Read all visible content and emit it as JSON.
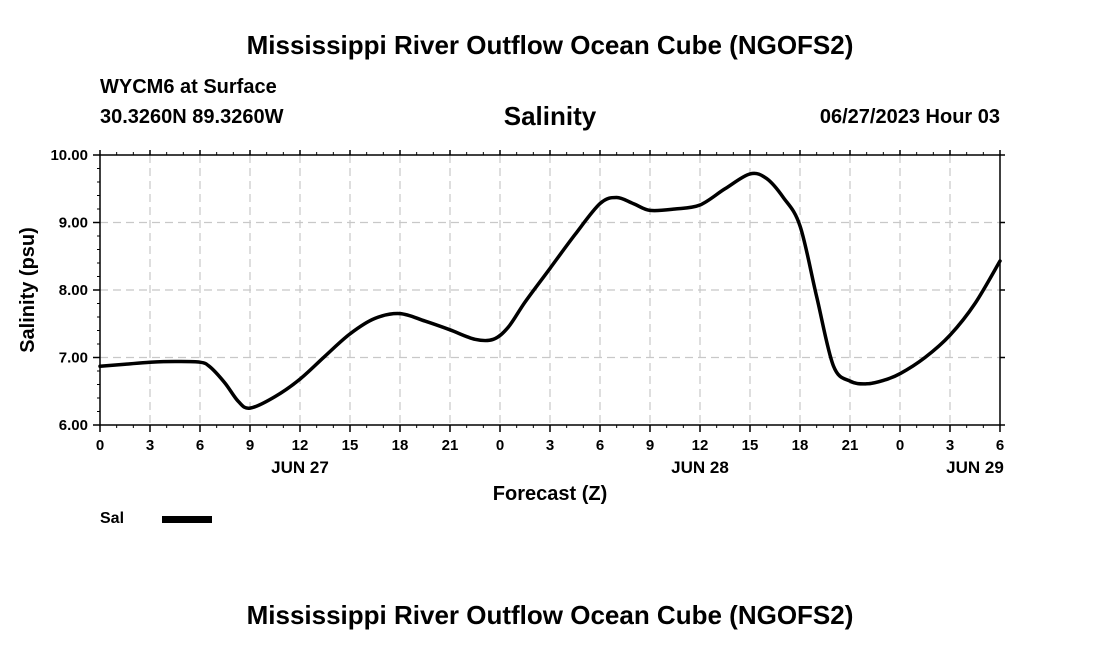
{
  "header": {
    "title": "Mississippi River Outflow Ocean Cube (NGOFS2)",
    "station": "WYCM6 at Surface",
    "coords": "30.3260N  89.3260W",
    "variable": "Salinity",
    "datetime": "06/27/2023 Hour 03"
  },
  "footer": {
    "title": "Mississippi River Outflow Ocean Cube (NGOFS2)"
  },
  "legend": {
    "label": "Sal",
    "color": "#000000"
  },
  "chart_data": {
    "type": "line",
    "title": "Salinity",
    "xlabel": "Forecast (Z)",
    "ylabel": "Salinity (psu)",
    "xlim": [
      0,
      54
    ],
    "ylim": [
      6.0,
      10.0
    ],
    "x_ticks": [
      0,
      3,
      6,
      9,
      12,
      15,
      18,
      21,
      24,
      27,
      30,
      33,
      36,
      39,
      42,
      45,
      48,
      51,
      54
    ],
    "x_tick_labels": [
      "0",
      "3",
      "6",
      "9",
      "12",
      "15",
      "18",
      "21",
      "0",
      "3",
      "6",
      "9",
      "12",
      "15",
      "18",
      "21",
      "0",
      "3",
      "6"
    ],
    "y_ticks": [
      6.0,
      7.0,
      8.0,
      9.0,
      10.0
    ],
    "y_tick_labels": [
      "6.00",
      "7.00",
      "8.00",
      "9.00",
      "10.00"
    ],
    "day_labels": [
      {
        "x": 12,
        "label": "JUN 27"
      },
      {
        "x": 36,
        "label": "JUN 28"
      },
      {
        "x": 52.5,
        "label": "JUN 29"
      }
    ],
    "grid": true,
    "series": [
      {
        "name": "Sal",
        "x": [
          0,
          1.5,
          3,
          4.5,
          6,
          6.6,
          7.5,
          8.3,
          9,
          10.5,
          12,
          13.5,
          15,
          16.5,
          18,
          19.5,
          21,
          22.5,
          23.6,
          24.5,
          25.5,
          27,
          28.5,
          30,
          31,
          32,
          33,
          34.5,
          36,
          37.5,
          39,
          40,
          41,
          42,
          43,
          44,
          45,
          46,
          47,
          48,
          49.5,
          51,
          52.5,
          54
        ],
        "values": [
          6.87,
          6.9,
          6.93,
          6.94,
          6.93,
          6.86,
          6.62,
          6.35,
          6.25,
          6.42,
          6.68,
          7.02,
          7.35,
          7.58,
          7.65,
          7.54,
          7.41,
          7.27,
          7.27,
          7.45,
          7.82,
          8.32,
          8.82,
          9.28,
          9.37,
          9.28,
          9.18,
          9.2,
          9.26,
          9.5,
          9.72,
          9.65,
          9.37,
          8.95,
          7.9,
          6.88,
          6.65,
          6.61,
          6.66,
          6.76,
          7.0,
          7.33,
          7.8,
          8.43
        ]
      }
    ]
  }
}
